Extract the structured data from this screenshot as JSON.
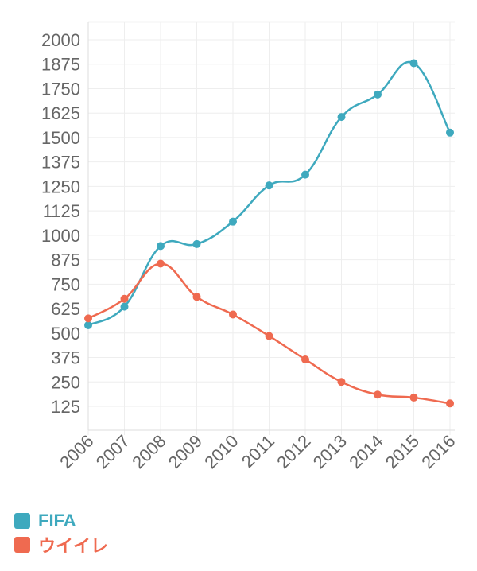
{
  "chart_data": {
    "type": "line",
    "categories": [
      "2006",
      "2007",
      "2008",
      "2009",
      "2010",
      "2011",
      "2012",
      "2013",
      "2014",
      "2015",
      "2016"
    ],
    "series": [
      {
        "name": "FIFA",
        "color": "#3ea9be",
        "values": [
          540,
          635,
          945,
          955,
          1070,
          1255,
          1310,
          1605,
          1720,
          1880,
          1525
        ]
      },
      {
        "name": "ウイイレ",
        "color": "#ef6a50",
        "values": [
          575,
          675,
          855,
          685,
          595,
          485,
          365,
          250,
          185,
          170,
          140
        ]
      }
    ],
    "yticks": [
      "2000",
      "1875",
      "1750",
      "1625",
      "1500",
      "1375",
      "1250",
      "1125",
      "1000",
      "875",
      "750",
      "625",
      "500",
      "375",
      "250",
      "125"
    ],
    "ylim": [
      0,
      2000
    ],
    "grid": true,
    "legend_position": "bottom-left",
    "title": "",
    "xlabel": "",
    "ylabel": ""
  }
}
